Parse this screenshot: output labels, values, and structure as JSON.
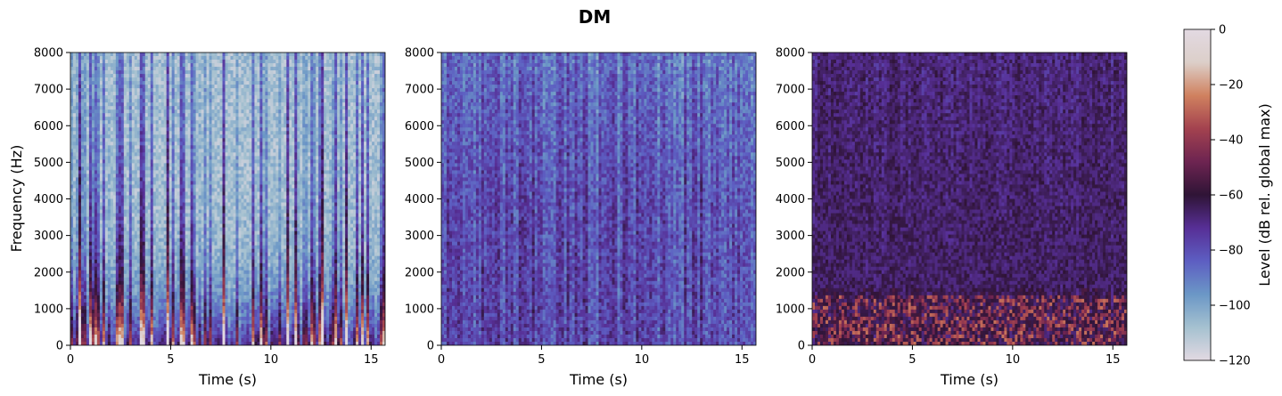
{
  "figure": {
    "title": "DM",
    "ylabel": "Frequency (Hz)",
    "colors": {
      "colormap": [
        "#e2d9e2",
        "#a5c1d0",
        "#6b97c6",
        "#5d5ec2",
        "#572f96",
        "#2f1436",
        "#6d2451",
        "#a3424f",
        "#d0815f",
        "#dccfc9",
        "#e2d9e2"
      ]
    }
  },
  "chart_data": [
    {
      "type": "heatmap",
      "title": "",
      "xlabel": "Time (s)",
      "ylabel": "Frequency (Hz)",
      "xlim": [
        0,
        15.7
      ],
      "ylim": [
        0,
        8000
      ],
      "xticks": [
        0,
        5,
        10,
        15
      ],
      "yticks": [
        0,
        1000,
        2000,
        3000,
        4000,
        5000,
        6000,
        7000,
        8000
      ],
      "z_unit": "dB rel. global max",
      "z_range": [
        -120,
        0
      ],
      "description_level": "mostly quiet (light) with dark voiced energy below 2000 Hz"
    },
    {
      "type": "heatmap",
      "title": "",
      "xlabel": "Time (s)",
      "ylabel": "",
      "xlim": [
        0,
        15.7
      ],
      "ylim": [
        0,
        8000
      ],
      "xticks": [
        0,
        5,
        10,
        15
      ],
      "yticks": [
        0,
        1000,
        2000,
        3000,
        4000,
        5000,
        6000,
        7000,
        8000
      ],
      "z_unit": "dB rel. global max",
      "z_range": [
        -120,
        0
      ],
      "description_level": "diffuse low-level noise, blue tones"
    },
    {
      "type": "heatmap",
      "title": "",
      "xlabel": "Time (s)",
      "ylabel": "",
      "xlim": [
        0,
        15.7
      ],
      "ylim": [
        0,
        8000
      ],
      "xticks": [
        0,
        5,
        10,
        15
      ],
      "yticks": [
        0,
        1000,
        2000,
        3000,
        4000,
        5000,
        6000,
        7000,
        8000
      ],
      "z_unit": "dB rel. global max",
      "z_range": [
        -120,
        0
      ],
      "description_level": "dense purple energy, harmonics below 1500 Hz"
    }
  ],
  "colorbar": {
    "label": "Level (dB rel. global max)",
    "ticks": [
      0,
      -20,
      -40,
      -60,
      -80,
      -100,
      -120
    ],
    "range": [
      -120,
      0
    ]
  }
}
